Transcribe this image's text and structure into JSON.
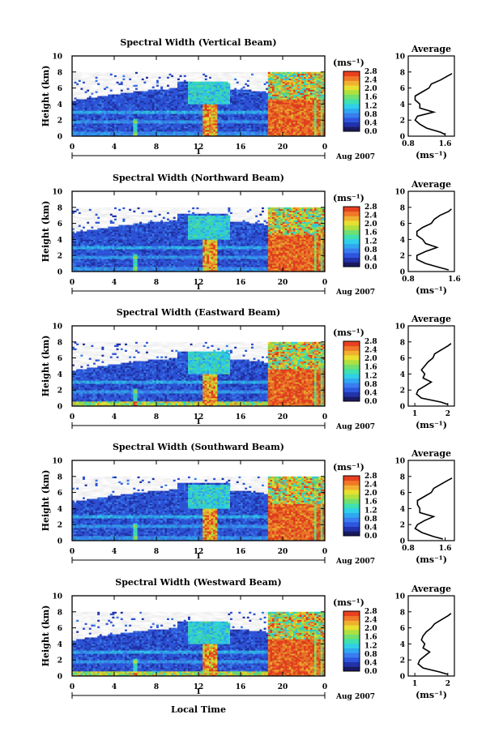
{
  "figure": {
    "xlabel": "Local Time",
    "cb_unit": "(ms⁻¹)",
    "avg_title": "Average",
    "avg_xlabel": "(ms⁻¹)",
    "ylabel": "Height (km)",
    "date_label": "Aug 2007",
    "day_label": "1"
  },
  "colormap": [
    "#1a1a60",
    "#2233aa",
    "#2e55dd",
    "#3a7df0",
    "#30a8f0",
    "#30d0e8",
    "#40e0b0",
    "#70e070",
    "#b0e040",
    "#e8e030",
    "#f0b030",
    "#f07828",
    "#e84020"
  ],
  "colorbar_ticks": [
    "0.0",
    "0.4",
    "0.8",
    "1.2",
    "1.6",
    "2.0",
    "2.4",
    "2.8"
  ],
  "chart_data": [
    {
      "type": "heatmap",
      "title": "Spectral Width (Vertical Beam)",
      "x_ticks": [
        "0",
        "4",
        "8",
        "12",
        "16",
        "20",
        "0"
      ],
      "y_ticks": [
        "0",
        "2",
        "4",
        "6",
        "8",
        "10"
      ],
      "xlim": [
        0,
        24
      ],
      "ylim": [
        0,
        10
      ],
      "clim": [
        0,
        2.8
      ],
      "avg_profile": {
        "xlim": [
          0.8,
          1.8
        ],
        "x_ticks": [
          "0.8",
          "1.6"
        ],
        "y_ticks": [
          "0",
          "2",
          "4",
          "6",
          "8",
          "10"
        ],
        "height": [
          0.2,
          0.5,
          1.0,
          1.5,
          2.0,
          2.5,
          3.0,
          3.5,
          4.0,
          4.5,
          5.0,
          5.5,
          6.0,
          6.5,
          7.0,
          7.5,
          7.8
        ],
        "value": [
          1.6,
          1.5,
          1.2,
          1.05,
          0.95,
          1.0,
          1.35,
          1.05,
          1.05,
          0.95,
          0.95,
          1.1,
          1.25,
          1.3,
          1.5,
          1.65,
          1.75
        ]
      }
    },
    {
      "type": "heatmap",
      "title": "Spectral Width (Northward Beam)",
      "x_ticks": [
        "0",
        "4",
        "8",
        "12",
        "16",
        "20",
        "0"
      ],
      "y_ticks": [
        "0",
        "2",
        "4",
        "6",
        "8",
        "10"
      ],
      "xlim": [
        0,
        24
      ],
      "ylim": [
        0,
        10
      ],
      "clim": [
        0,
        2.8
      ],
      "avg_profile": {
        "xlim": [
          0.8,
          1.6
        ],
        "x_ticks": [
          "0.8",
          "1.6"
        ],
        "y_ticks": [
          "0",
          "2",
          "4",
          "6",
          "8",
          "10"
        ],
        "height": [
          0.2,
          0.5,
          1.0,
          1.5,
          2.0,
          2.5,
          3.0,
          3.5,
          4.0,
          4.5,
          5.0,
          5.5,
          6.0,
          6.5,
          7.0,
          7.5,
          7.8
        ],
        "value": [
          1.5,
          1.35,
          1.1,
          0.95,
          0.95,
          1.1,
          1.3,
          1.1,
          1.05,
          0.95,
          0.95,
          1.05,
          1.2,
          1.25,
          1.35,
          1.5,
          1.55
        ]
      }
    },
    {
      "type": "heatmap",
      "title": "Spectral Width (Eastward Beam)",
      "x_ticks": [
        "0",
        "4",
        "8",
        "12",
        "16",
        "20",
        "0"
      ],
      "y_ticks": [
        "0",
        "2",
        "4",
        "6",
        "8",
        "10"
      ],
      "xlim": [
        0,
        24
      ],
      "ylim": [
        0,
        10
      ],
      "clim": [
        0,
        2.8
      ],
      "avg_profile": {
        "xlim": [
          0.8,
          2.2
        ],
        "x_ticks": [
          "1",
          "2"
        ],
        "y_ticks": [
          "0",
          "2",
          "4",
          "6",
          "8",
          "10"
        ],
        "height": [
          0.2,
          0.5,
          1.0,
          1.5,
          2.0,
          2.5,
          3.0,
          3.5,
          4.0,
          4.5,
          5.0,
          5.5,
          6.0,
          6.5,
          7.0,
          7.5,
          7.8
        ],
        "value": [
          2.0,
          1.8,
          1.2,
          1.05,
          1.1,
          1.3,
          1.5,
          1.25,
          1.3,
          1.2,
          1.3,
          1.4,
          1.55,
          1.6,
          1.8,
          2.0,
          2.1
        ]
      }
    },
    {
      "type": "heatmap",
      "title": "Spectral Width (Southward Beam)",
      "x_ticks": [
        "0",
        "4",
        "8",
        "12",
        "16",
        "20",
        "0"
      ],
      "y_ticks": [
        "0",
        "2",
        "4",
        "6",
        "8",
        "10"
      ],
      "xlim": [
        0,
        24
      ],
      "ylim": [
        0,
        10
      ],
      "clim": [
        0,
        2.8
      ],
      "avg_profile": {
        "xlim": [
          0.8,
          1.8
        ],
        "x_ticks": [
          "0.8",
          "1.6"
        ],
        "y_ticks": [
          "0",
          "2",
          "4",
          "6",
          "8",
          "10"
        ],
        "height": [
          0.2,
          0.5,
          1.0,
          1.5,
          2.0,
          2.5,
          3.0,
          3.5,
          4.0,
          4.5,
          5.0,
          5.5,
          6.0,
          6.5,
          7.0,
          7.5,
          7.8
        ],
        "value": [
          1.55,
          1.35,
          1.1,
          0.95,
          1.0,
          1.15,
          1.35,
          1.05,
          1.05,
          1.0,
          1.0,
          1.15,
          1.3,
          1.35,
          1.5,
          1.65,
          1.75
        ]
      }
    },
    {
      "type": "heatmap",
      "title": "Spectral Width (Westward Beam)",
      "x_ticks": [
        "0",
        "4",
        "8",
        "12",
        "16",
        "20",
        "0"
      ],
      "y_ticks": [
        "0",
        "2",
        "4",
        "6",
        "8",
        "10"
      ],
      "xlim": [
        0,
        24
      ],
      "ylim": [
        0,
        10
      ],
      "clim": [
        0,
        2.8
      ],
      "avg_profile": {
        "xlim": [
          0.8,
          2.2
        ],
        "x_ticks": [
          "1",
          "2"
        ],
        "y_ticks": [
          "0",
          "2",
          "4",
          "6",
          "8",
          "10"
        ],
        "height": [
          0.2,
          0.5,
          1.0,
          1.5,
          2.0,
          2.5,
          3.0,
          3.5,
          4.0,
          4.5,
          5.0,
          5.5,
          6.0,
          6.5,
          7.0,
          7.5,
          7.8
        ],
        "value": [
          2.0,
          1.75,
          1.25,
          1.1,
          1.15,
          1.3,
          1.45,
          1.25,
          1.3,
          1.2,
          1.25,
          1.35,
          1.5,
          1.6,
          1.8,
          2.0,
          2.1
        ]
      }
    }
  ]
}
